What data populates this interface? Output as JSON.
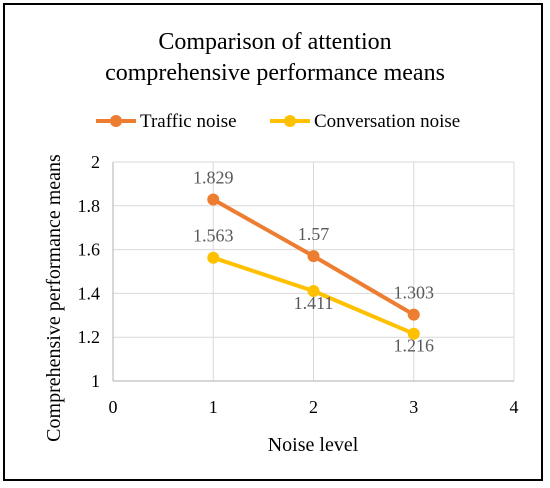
{
  "chart_data": {
    "type": "line",
    "title_line1": "Comparison of attention",
    "title_line2": "comprehensive performance means",
    "xlabel": "Noise level",
    "ylabel": "Comprehensive performance means",
    "xlim": [
      0,
      4
    ],
    "ylim": [
      1,
      2
    ],
    "x_ticks": [
      "0",
      "1",
      "2",
      "3",
      "4"
    ],
    "y_ticks": [
      "1",
      "1.2",
      "1.4",
      "1.6",
      "1.8",
      "2"
    ],
    "grid": true,
    "legend_position": "top",
    "series": [
      {
        "name": "Traffic noise",
        "color": "#ED7D31",
        "x": [
          1,
          2,
          3
        ],
        "values": [
          1.829,
          1.57,
          1.303
        ],
        "labels": [
          "1.829",
          "1.57",
          "1.303"
        ]
      },
      {
        "name": "Conversation noise",
        "color": "#FFC000",
        "x": [
          1,
          2,
          3
        ],
        "values": [
          1.563,
          1.411,
          1.216
        ],
        "labels": [
          "1.563",
          "1.411",
          "1.216"
        ]
      }
    ]
  }
}
